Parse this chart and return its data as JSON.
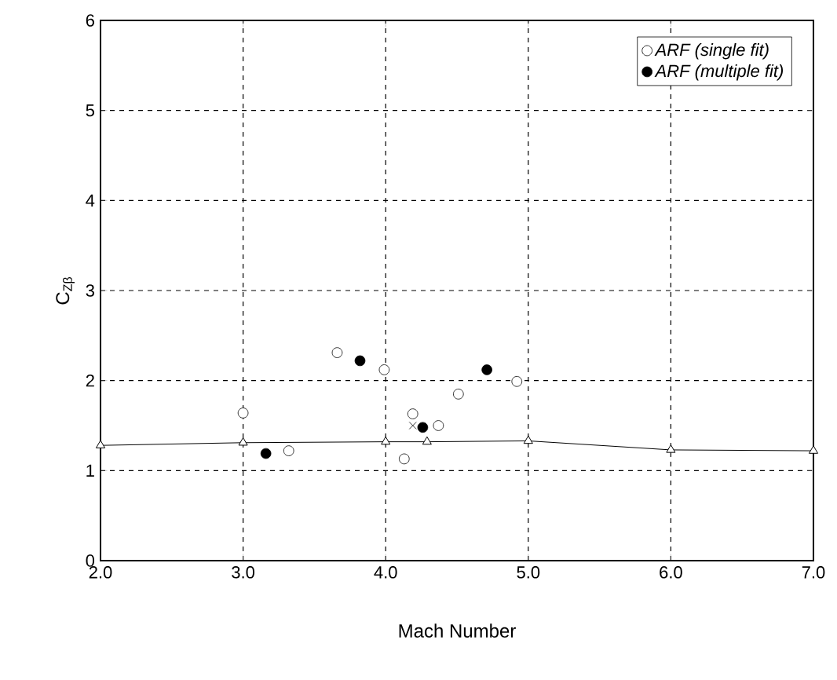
{
  "chart_data": {
    "type": "scatter",
    "xlabel": "Mach Number",
    "ylabel": "C$_{Zβ}$",
    "xlim": [
      2,
      7
    ],
    "ylim": [
      0,
      6
    ],
    "xticks": [
      {
        "value": 2,
        "label": "2.0"
      },
      {
        "value": 3,
        "label": "3.0"
      },
      {
        "value": 4,
        "label": "4.0"
      },
      {
        "value": 5,
        "label": "5.0"
      },
      {
        "value": 6,
        "label": "6.0"
      },
      {
        "value": 7,
        "label": "7.0"
      }
    ],
    "yticks": [
      0,
      1,
      2,
      3,
      4,
      5,
      6
    ],
    "grid": true,
    "legend": "top right",
    "series": [
      {
        "name": "ARF (single fit)",
        "marker": "circle",
        "color": "#ffffff",
        "x": [
          3.0,
          3.32,
          3.66,
          3.99,
          4.13,
          4.19,
          4.37,
          4.51,
          4.92
        ],
        "values": [
          1.64,
          1.22,
          2.31,
          2.12,
          1.13,
          1.63,
          1.5,
          1.85,
          1.99
        ]
      },
      {
        "name": "ARF (multiple fit)",
        "marker": "circle",
        "color": "#000000",
        "x": [
          3.16,
          3.82,
          4.26,
          4.71
        ],
        "values": [
          1.19,
          2.22,
          1.48,
          2.12
        ]
      },
      {
        "type": "line",
        "marker": "triangle",
        "line_style": "solid",
        "color": "#000000",
        "x": [
          2,
          3,
          4,
          4.29,
          5,
          6,
          7
        ],
        "values": [
          1.28,
          1.31,
          1.32,
          1.32,
          1.33,
          1.23,
          1.22
        ]
      },
      {
        "marker": "cross",
        "color": "#000000",
        "x": [
          4.19
        ],
        "values": [
          1.5
        ]
      }
    ]
  }
}
